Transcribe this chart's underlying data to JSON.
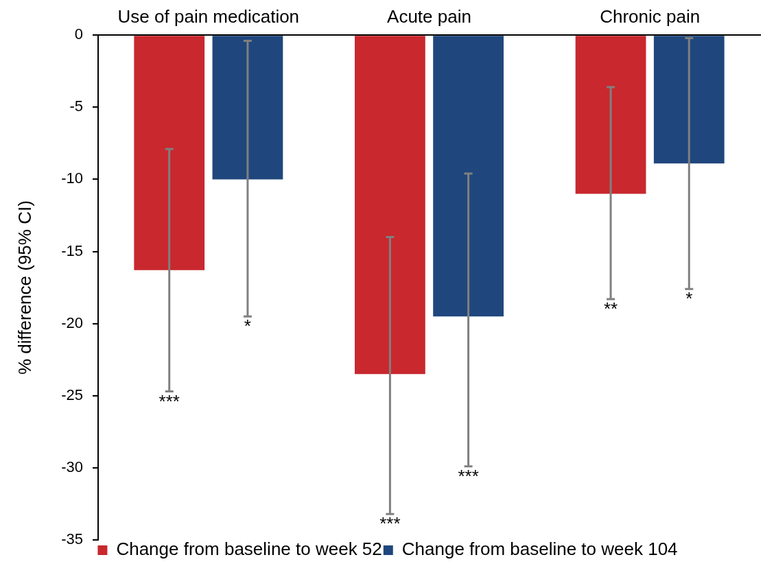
{
  "chart_data": {
    "type": "bar",
    "categories": [
      "Use of pain medication",
      "Acute pain",
      "Chronic pain"
    ],
    "ylabel": "% difference (95% CI)",
    "ylim": [
      -35,
      0
    ],
    "yticks": [
      -35,
      -30,
      -25,
      -20,
      -15,
      -10,
      -5,
      0
    ],
    "legend": "bottom",
    "annotations": [
      "***",
      "*",
      "***",
      "***",
      "**",
      "*"
    ],
    "series": [
      {
        "name": "Change from baseline to week 52",
        "color": "#c8282e",
        "values": [
          -16.3,
          -23.5,
          -11.0
        ],
        "errors": [
          [
            -24.7,
            -7.9
          ],
          [
            -33.2,
            -14.0
          ],
          [
            -18.3,
            -3.6
          ]
        ]
      },
      {
        "name": "Change from baseline to week 104",
        "color": "#1f477d",
        "values": [
          -10.0,
          -19.5,
          -8.9
        ],
        "errors": [
          [
            -19.5,
            -0.4
          ],
          [
            -29.9,
            -9.6
          ],
          [
            -17.6,
            -0.2
          ]
        ]
      }
    ]
  }
}
